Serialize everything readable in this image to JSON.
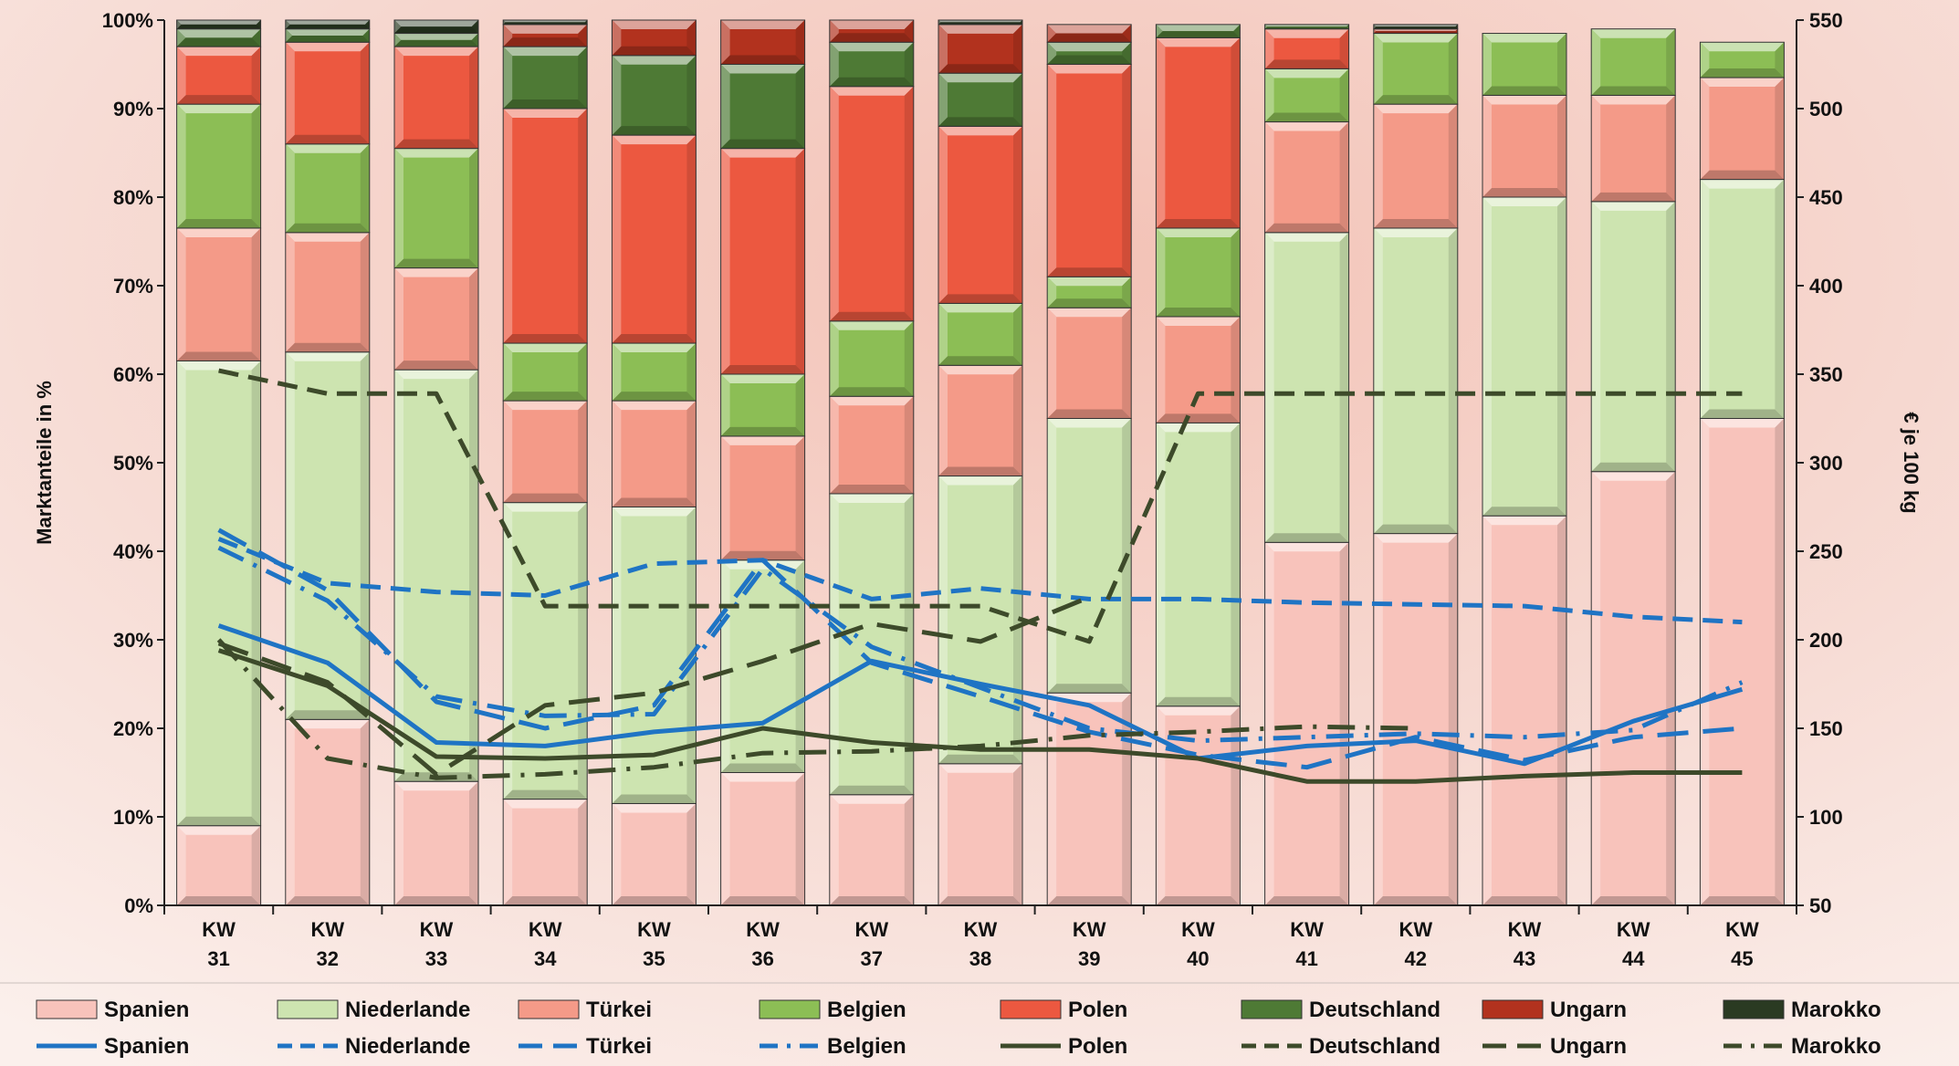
{
  "chart_data": {
    "type": "bar",
    "stacked": true,
    "combo": "stacked bar (left axis, market share %) + lines (right axis, € je 100 kg)",
    "title": "",
    "xlabel": "",
    "ylabel": "Marktanteile in %",
    "y2label": "€ je 100 kg",
    "ylim": [
      0,
      100
    ],
    "y2lim": [
      50,
      550
    ],
    "yticks": [
      "0%",
      "10%",
      "20%",
      "30%",
      "40%",
      "50%",
      "60%",
      "70%",
      "80%",
      "90%",
      "100%"
    ],
    "y2ticks": [
      "50",
      "100",
      "150",
      "200",
      "250",
      "300",
      "350",
      "400",
      "450",
      "500",
      "550"
    ],
    "grid": false,
    "legend_position": "bottom",
    "categories": [
      [
        "KW",
        "31"
      ],
      [
        "KW",
        "32"
      ],
      [
        "KW",
        "33"
      ],
      [
        "KW",
        "34"
      ],
      [
        "KW",
        "35"
      ],
      [
        "KW",
        "36"
      ],
      [
        "KW",
        "37"
      ],
      [
        "KW",
        "38"
      ],
      [
        "KW",
        "39"
      ],
      [
        "KW",
        "40"
      ],
      [
        "KW",
        "41"
      ],
      [
        "KW",
        "42"
      ],
      [
        "KW",
        "43"
      ],
      [
        "KW",
        "44"
      ],
      [
        "KW",
        "45"
      ]
    ],
    "series": [
      {
        "name": "Spanien",
        "color": "#f8c3bb",
        "values": [
          9,
          21,
          14,
          12,
          11.5,
          15,
          12.5,
          16,
          24,
          22.5,
          41,
          42,
          44,
          49,
          55
        ]
      },
      {
        "name": "Niederlande",
        "color": "#cde4b0",
        "values": [
          52.5,
          41.5,
          46.5,
          33.5,
          33.5,
          24,
          34,
          32.5,
          31,
          32,
          35,
          34.5,
          36,
          30.5,
          27
        ]
      },
      {
        "name": "Türkei",
        "color": "#f49a88",
        "values": [
          15,
          13.5,
          11.5,
          11.5,
          12,
          14,
          11,
          12.5,
          12.5,
          12,
          12.5,
          14,
          11.5,
          12,
          11.5
        ]
      },
      {
        "name": "Belgien",
        "color": "#8cbe55",
        "values": [
          14,
          10,
          13.5,
          6.5,
          6.5,
          7,
          8.5,
          7,
          3.5,
          10,
          6,
          8,
          7,
          7.5,
          4
        ]
      },
      {
        "name": "Polen",
        "color": "#ec5840",
        "values": [
          6.5,
          11.5,
          11.5,
          26.5,
          23.5,
          25.5,
          26.5,
          20,
          24,
          21.5,
          4.5,
          0,
          0,
          0,
          0
        ]
      },
      {
        "name": "Deutschland",
        "color": "#4e7a35",
        "values": [
          2,
          1.5,
          1.5,
          7,
          9,
          9.5,
          5,
          6,
          2.5,
          1.5,
          0.5,
          0,
          0,
          0,
          0
        ]
      },
      {
        "name": "Ungarn",
        "color": "#b2321e",
        "values": [
          0,
          0,
          0,
          2.5,
          4,
          5,
          2.5,
          5.5,
          2,
          0,
          0,
          0.5,
          0,
          0,
          0
        ]
      },
      {
        "name": "Marokko",
        "color": "#2a3a22",
        "values": [
          1,
          1,
          1.5,
          0.5,
          0,
          0,
          0,
          0.5,
          0,
          0,
          0,
          0.5,
          0,
          0,
          0
        ]
      }
    ],
    "line_series": [
      {
        "name": "Spanien",
        "color": "#1f74c4",
        "dash": "solid",
        "values": [
          208,
          187,
          142,
          140,
          148,
          153,
          188,
          175,
          163,
          133,
          140,
          143,
          130,
          154,
          172
        ]
      },
      {
        "name": "Niederlande",
        "color": "#1f74c4",
        "dash": "dash",
        "values": [
          257,
          232,
          227,
          225,
          243,
          245,
          223,
          229,
          223,
          223,
          221,
          220,
          219,
          213,
          210
        ]
      },
      {
        "name": "Türkei",
        "color": "#1f74c4",
        "dash": "longdash",
        "values": [
          262,
          228,
          165,
          150,
          163,
          245,
          187,
          168,
          148,
          135,
          128,
          145,
          132,
          145,
          150
        ]
      },
      {
        "name": "Belgien",
        "color": "#1f74c4",
        "dash": "dashdot",
        "values": [
          252,
          222,
          168,
          157,
          158,
          240,
          196,
          173,
          150,
          143,
          145,
          147,
          145,
          149,
          176
        ]
      },
      {
        "name": "Polen",
        "color": "#3d4a2a",
        "dash": "solid",
        "values": [
          194,
          174,
          134,
          133,
          135,
          150,
          142,
          138,
          138,
          133,
          120,
          120,
          123,
          125,
          125
        ]
      },
      {
        "name": "Deutschland",
        "color": "#3d4a2a",
        "dash": "dash",
        "values": [
          352,
          339,
          339,
          219,
          219,
          219,
          219,
          219,
          199,
          339,
          339,
          339,
          339,
          339,
          339
        ]
      },
      {
        "name": "Ungarn",
        "color": "#3d4a2a",
        "dash": "longdash",
        "values": [
          198,
          176,
          124,
          163,
          170,
          188,
          209,
          199,
          224,
          null,
          null,
          null,
          null,
          null,
          null
        ]
      },
      {
        "name": "Marokko",
        "color": "#3d4a2a",
        "dash": "dashdot",
        "values": [
          200,
          133,
          122,
          124,
          128,
          136,
          137,
          140,
          146,
          148,
          151,
          150,
          null,
          null,
          null
        ]
      }
    ]
  }
}
